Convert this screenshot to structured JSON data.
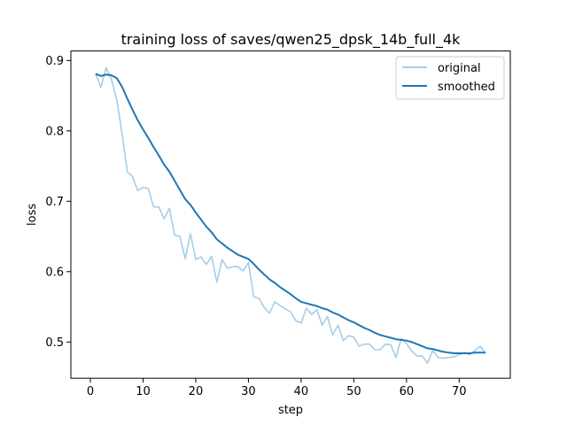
{
  "chart_data": {
    "type": "line",
    "title": "training loss of saves/qwen25_dpsk_14b_full_4k",
    "xlabel": "step",
    "ylabel": "loss",
    "xlim": [
      -3.7,
      79.7
    ],
    "ylim": [
      0.4485,
      0.9135
    ],
    "xticks": [
      0,
      10,
      20,
      30,
      40,
      50,
      60,
      70
    ],
    "yticks": [
      0.5,
      0.6,
      0.7,
      0.8,
      0.9
    ],
    "xtick_labels": [
      "0",
      "10",
      "20",
      "30",
      "40",
      "50",
      "60",
      "70"
    ],
    "ytick_labels": [
      "0.5",
      "0.6",
      "0.7",
      "0.8",
      "0.9"
    ],
    "grid": false,
    "legend": "top-right",
    "x": [
      1,
      2,
      3,
      4,
      5,
      6,
      7,
      8,
      9,
      10,
      11,
      12,
      13,
      14,
      15,
      16,
      17,
      18,
      19,
      20,
      21,
      22,
      23,
      24,
      25,
      26,
      27,
      28,
      29,
      30,
      31,
      32,
      33,
      34,
      35,
      36,
      37,
      38,
      39,
      40,
      41,
      42,
      43,
      44,
      45,
      46,
      47,
      48,
      49,
      50,
      51,
      52,
      53,
      54,
      55,
      56,
      57,
      58,
      59,
      60,
      61,
      62,
      63,
      64,
      65,
      66,
      67,
      68,
      69,
      70,
      71,
      72,
      73,
      74,
      75
    ],
    "series": [
      {
        "name": "original",
        "color": "#a6cde6",
        "values": [
          0.881,
          0.862,
          0.89,
          0.873,
          0.845,
          0.797,
          0.742,
          0.735,
          0.715,
          0.72,
          0.718,
          0.692,
          0.692,
          0.675,
          0.69,
          0.652,
          0.65,
          0.618,
          0.654,
          0.617,
          0.621,
          0.61,
          0.622,
          0.585,
          0.617,
          0.605,
          0.607,
          0.607,
          0.601,
          0.613,
          0.564,
          0.562,
          0.549,
          0.541,
          0.557,
          0.552,
          0.547,
          0.543,
          0.53,
          0.527,
          0.548,
          0.539,
          0.546,
          0.524,
          0.536,
          0.51,
          0.524,
          0.502,
          0.509,
          0.507,
          0.494,
          0.497,
          0.497,
          0.489,
          0.489,
          0.497,
          0.496,
          0.478,
          0.505,
          0.498,
          0.487,
          0.48,
          0.48,
          0.47,
          0.488,
          0.478,
          0.477,
          0.478,
          0.479,
          0.482,
          0.485,
          0.482,
          0.488,
          0.494,
          0.484
        ]
      },
      {
        "name": "smoothed",
        "color": "#1f77b4",
        "values": [
          0.881,
          0.878,
          0.88,
          0.879,
          0.875,
          0.863,
          0.846,
          0.83,
          0.815,
          0.802,
          0.79,
          0.777,
          0.765,
          0.752,
          0.742,
          0.729,
          0.716,
          0.703,
          0.695,
          0.684,
          0.674,
          0.664,
          0.656,
          0.646,
          0.64,
          0.634,
          0.629,
          0.624,
          0.621,
          0.618,
          0.611,
          0.603,
          0.596,
          0.589,
          0.584,
          0.578,
          0.573,
          0.568,
          0.562,
          0.557,
          0.555,
          0.553,
          0.551,
          0.548,
          0.546,
          0.542,
          0.539,
          0.535,
          0.531,
          0.528,
          0.524,
          0.52,
          0.517,
          0.513,
          0.51,
          0.508,
          0.506,
          0.504,
          0.503,
          0.502,
          0.5,
          0.497,
          0.494,
          0.491,
          0.49,
          0.488,
          0.486,
          0.485,
          0.484,
          0.484,
          0.484,
          0.484,
          0.485,
          0.485,
          0.485
        ]
      }
    ]
  }
}
